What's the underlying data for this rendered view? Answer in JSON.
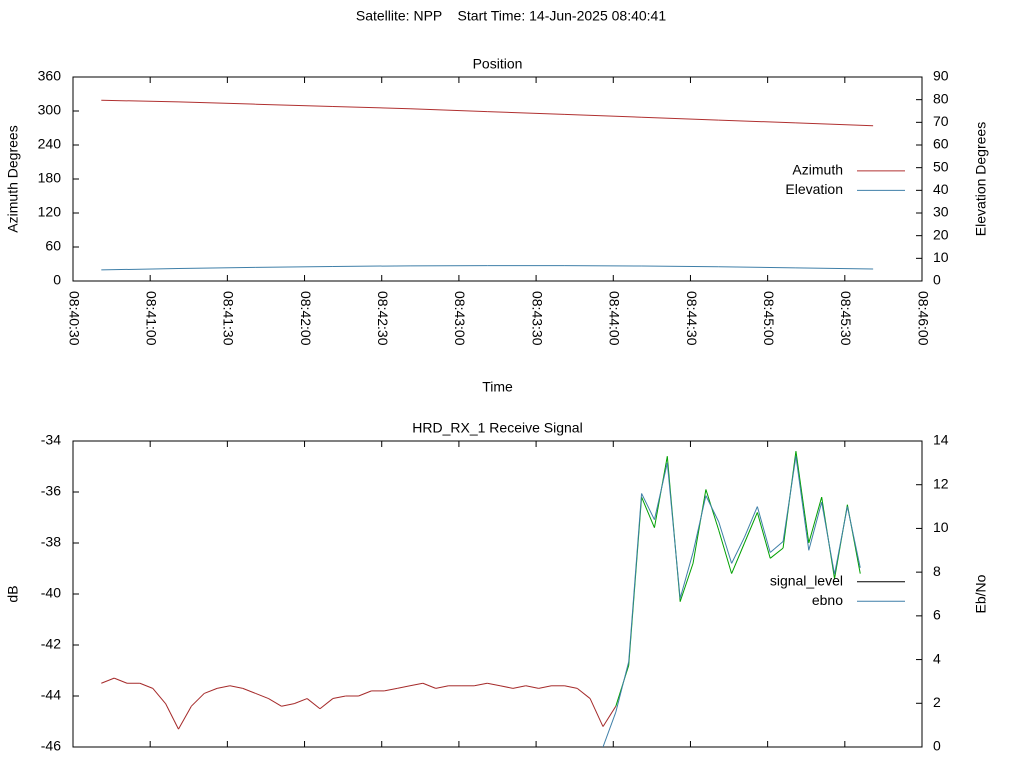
{
  "title": "Satellite: NPP    Start Time: 14-Jun-2025 08:40:41",
  "chart_data": [
    {
      "type": "line",
      "title": "Position",
      "xlabel": "Time",
      "ylabel": "Azimuth Degrees",
      "y2label": "Elevation Degrees",
      "x": [
        "08:40:41",
        "08:41:11",
        "08:41:41",
        "08:42:11",
        "08:42:41",
        "08:43:11",
        "08:43:41",
        "08:44:11",
        "08:44:41",
        "08:45:11",
        "08:45:41"
      ],
      "xlim": [
        "08:40:30",
        "08:46:00"
      ],
      "xticks": [
        "08:40:30",
        "08:41:00",
        "08:41:30",
        "08:42:00",
        "08:42:30",
        "08:43:00",
        "08:43:30",
        "08:44:00",
        "08:44:30",
        "08:45:00",
        "08:45:30",
        "08:46:00"
      ],
      "show_xtick_labels": true,
      "ylim": [
        0,
        360
      ],
      "yticks": [
        0,
        60,
        120,
        180,
        240,
        300,
        360
      ],
      "y2lim": [
        0,
        90
      ],
      "y2ticks": [
        0,
        10,
        20,
        30,
        40,
        50,
        60,
        70,
        80,
        90
      ],
      "legend": "right",
      "series": [
        {
          "name": "Azimuth",
          "color": "#b03030",
          "values": [
            319,
            316,
            312,
            308,
            304,
            299,
            294,
            289,
            284,
            279,
            274
          ]
        },
        {
          "name": "Elevation",
          "color": "#3f7fa8",
          "axis": "y2",
          "values": [
            4.9,
            5.5,
            6.0,
            6.4,
            6.7,
            6.8,
            6.8,
            6.6,
            6.3,
            5.8,
            5.3
          ]
        }
      ]
    },
    {
      "type": "line",
      "title": "HRD_RX_1 Receive Signal",
      "ylabel": "dB",
      "y2label": "Eb/No",
      "x": [
        "08:40:41",
        "08:40:46",
        "08:40:51",
        "08:40:56",
        "08:41:01",
        "08:41:06",
        "08:41:11",
        "08:41:16",
        "08:41:21",
        "08:41:26",
        "08:41:31",
        "08:41:36",
        "08:41:41",
        "08:41:46",
        "08:41:51",
        "08:41:56",
        "08:42:01",
        "08:42:06",
        "08:42:11",
        "08:42:16",
        "08:42:21",
        "08:42:26",
        "08:42:31",
        "08:42:36",
        "08:42:41",
        "08:42:46",
        "08:42:51",
        "08:42:56",
        "08:43:01",
        "08:43:06",
        "08:43:11",
        "08:43:16",
        "08:43:21",
        "08:43:26",
        "08:43:31",
        "08:43:36",
        "08:43:41",
        "08:43:46",
        "08:43:51",
        "08:43:56",
        "08:44:01",
        "08:44:06",
        "08:44:11",
        "08:44:16",
        "08:44:21",
        "08:44:26",
        "08:44:31",
        "08:44:36",
        "08:44:41",
        "08:44:46",
        "08:44:51",
        "08:44:56",
        "08:45:01",
        "08:45:06",
        "08:45:11",
        "08:45:16",
        "08:45:21",
        "08:45:26",
        "08:45:31",
        "08:45:36"
      ],
      "xlim": [
        "08:40:30",
        "08:46:00"
      ],
      "xticks": [
        "08:40:30",
        "08:41:00",
        "08:41:30",
        "08:42:00",
        "08:42:30",
        "08:43:00",
        "08:43:30",
        "08:44:00",
        "08:44:30",
        "08:45:00",
        "08:45:30",
        "08:46:00"
      ],
      "show_xtick_labels": false,
      "ylim": [
        -46,
        -34
      ],
      "yticks": [
        -46,
        -44,
        -42,
        -40,
        -38,
        -36,
        -34
      ],
      "y2lim": [
        0,
        14
      ],
      "y2ticks": [
        0,
        2,
        4,
        6,
        8,
        10,
        12,
        14
      ],
      "legend": "right",
      "series": [
        {
          "name": "signal_level",
          "color": "#000000",
          "line_colors": [
            "#a52a2a",
            "#00a000"
          ],
          "line_color_switch": "08:43:58",
          "values": [
            -43.5,
            -43.3,
            -43.5,
            -43.5,
            -43.7,
            -44.3,
            -45.3,
            -44.4,
            -43.9,
            -43.7,
            -43.6,
            -43.7,
            -43.9,
            -44.1,
            -44.4,
            -44.3,
            -44.1,
            -44.5,
            -44.1,
            -44.0,
            -44.0,
            -43.8,
            -43.8,
            -43.7,
            -43.6,
            -43.5,
            -43.7,
            -43.6,
            -43.6,
            -43.6,
            -43.5,
            -43.6,
            -43.7,
            -43.6,
            -43.7,
            -43.6,
            -43.6,
            -43.7,
            -44.1,
            -45.2,
            -44.4,
            -42.8,
            -36.2,
            -37.4,
            -34.6,
            -40.3,
            -38.8,
            -35.9,
            -37.5,
            -39.2,
            -38.0,
            -36.8,
            -38.6,
            -38.2,
            -34.4,
            -38.0,
            -36.2,
            -39.4,
            -36.5,
            -39.2
          ]
        },
        {
          "name": "ebno",
          "color": "#3f7fa8",
          "axis": "y2",
          "values": [
            null,
            null,
            null,
            null,
            null,
            null,
            null,
            null,
            null,
            null,
            null,
            null,
            null,
            null,
            null,
            null,
            null,
            null,
            null,
            null,
            null,
            null,
            null,
            null,
            null,
            null,
            null,
            null,
            null,
            null,
            null,
            null,
            null,
            null,
            null,
            null,
            null,
            null,
            null,
            0.0,
            1.6,
            3.9,
            11.6,
            10.4,
            13.0,
            6.8,
            8.9,
            11.5,
            10.3,
            8.4,
            9.6,
            11.0,
            8.9,
            9.4,
            13.3,
            9.0,
            11.2,
            7.9,
            11.0,
            8.2
          ]
        }
      ]
    }
  ]
}
